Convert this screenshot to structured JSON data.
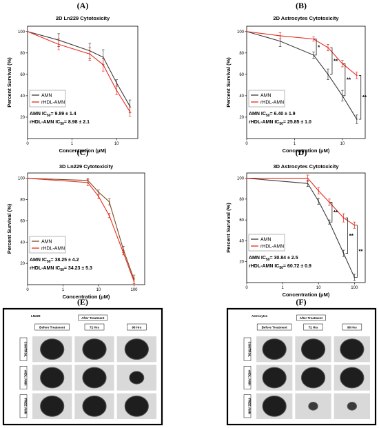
{
  "figure": {
    "panels": [
      {
        "id": "A",
        "letter": "(A)"
      },
      {
        "id": "B",
        "letter": "(B)"
      },
      {
        "id": "C",
        "letter": "(C)"
      },
      {
        "id": "D",
        "letter": "(D)"
      },
      {
        "id": "E",
        "letter": "(E)"
      },
      {
        "id": "F",
        "letter": "(F)"
      }
    ],
    "colors": {
      "amn": "#3a3a3a",
      "rhdl": "#e8281c",
      "bracket": "#000000"
    }
  },
  "chart_data": [
    {
      "id": "A",
      "type": "line",
      "title": "2D Ln229 Cytotoxicity",
      "xlabel": "Concentration (μM)",
      "ylabel": "Percent Survival (%)",
      "xscale": "log",
      "xticks": [
        {
          "v": 0.1,
          "label": "0"
        },
        {
          "v": 1,
          "label": "1"
        },
        {
          "v": 10,
          "label": "10"
        }
      ],
      "yticks": [
        20,
        40,
        60,
        80,
        100
      ],
      "ylim": [
        0,
        105
      ],
      "xlim": [
        0.1,
        30
      ],
      "legend_position": "bottom-left",
      "series": [
        {
          "name": "AMN",
          "color": "#3a3a3a",
          "x": [
            0.1,
            0.5,
            2.5,
            5,
            10,
            20
          ],
          "y": [
            100,
            92,
            82,
            76,
            52,
            30
          ],
          "err": [
            0,
            6,
            7,
            7,
            3,
            6
          ]
        },
        {
          "name": "rHDL-AMN",
          "color": "#e8281c",
          "x": [
            0.1,
            0.5,
            2.5,
            5,
            10,
            20
          ],
          "y": [
            100,
            88,
            79,
            69,
            45,
            25
          ],
          "err": [
            0,
            5,
            6,
            6,
            4,
            4
          ]
        }
      ],
      "ic50": [
        {
          "prefix": "AMN IC",
          "sub": "50",
          "value": "= 9.89 ± 1.4"
        },
        {
          "prefix": "rHDL-AMN IC",
          "sub": "50",
          "value": "= 8.98 ± 2.1"
        }
      ],
      "significance": []
    },
    {
      "id": "B",
      "type": "line",
      "title": "2D Astrocytes Cytotoxicity",
      "xlabel": "Concentration (μM)",
      "ylabel": "Percent Survival (%)",
      "xscale": "log",
      "xticks": [
        {
          "v": 0.1,
          "label": "0"
        },
        {
          "v": 1,
          "label": "1"
        },
        {
          "v": 10,
          "label": "10"
        }
      ],
      "yticks": [
        20,
        40,
        60,
        80,
        100
      ],
      "ylim": [
        0,
        105
      ],
      "xlim": [
        0.1,
        30
      ],
      "legend_position": "bottom-left",
      "series": [
        {
          "name": "AMN",
          "color": "#3a3a3a",
          "x": [
            0.1,
            0.5,
            2.5,
            5,
            10,
            20
          ],
          "y": [
            100,
            91,
            78,
            60,
            40,
            18
          ],
          "err": [
            0,
            5,
            3,
            5,
            5,
            4
          ]
        },
        {
          "name": "rHDL-AMN",
          "color": "#e8281c",
          "x": [
            0.1,
            0.5,
            2.5,
            5,
            10,
            20
          ],
          "y": [
            100,
            96,
            93,
            85,
            70,
            59
          ],
          "err": [
            0,
            3,
            2,
            3,
            3,
            3
          ]
        }
      ],
      "ic50": [
        {
          "prefix": "AMN IC",
          "sub": "50",
          "value": "= 6.40 ± 1.9"
        },
        {
          "prefix": "rHDL-AMN IC",
          "sub": "50",
          "value": "= 25.85 ± 1.0"
        }
      ],
      "significance": [
        {
          "x": 2.5,
          "label": "*"
        },
        {
          "x": 5,
          "label": "**"
        },
        {
          "x": 10,
          "label": "**"
        },
        {
          "x": 20,
          "label": "**"
        }
      ]
    },
    {
      "id": "C",
      "type": "line",
      "title": "3D Ln229 Cytotoxicity",
      "xlabel": "Concentration (μM)",
      "ylabel": "Percent Survival (%)",
      "xscale": "log",
      "xticks": [
        {
          "v": 0.1,
          "label": "0"
        },
        {
          "v": 1,
          "label": "1"
        },
        {
          "v": 10,
          "label": "10"
        },
        {
          "v": 100,
          "label": "100"
        }
      ],
      "yticks": [
        20,
        40,
        60,
        80,
        100
      ],
      "ylim": [
        0,
        105
      ],
      "xlim": [
        0.1,
        200
      ],
      "legend_position": "bottom-left",
      "series": [
        {
          "name": "AMN",
          "color": "#7a4a22",
          "x": [
            0.1,
            5,
            10,
            20,
            50,
            100
          ],
          "y": [
            100,
            98,
            87,
            78,
            33,
            5
          ],
          "err": [
            0,
            2,
            2,
            3,
            3,
            4
          ]
        },
        {
          "name": "rHDL-AMN",
          "color": "#e8281c",
          "x": [
            0.1,
            5,
            10,
            20,
            50,
            100
          ],
          "y": [
            100,
            96,
            83,
            65,
            30,
            3
          ],
          "err": [
            0,
            3,
            2,
            2,
            2,
            3
          ]
        }
      ],
      "ic50": [
        {
          "prefix": "AMN IC",
          "sub": "50",
          "value": "= 38.25 ± 4.2"
        },
        {
          "prefix": "rHDL-AMN IC",
          "sub": "50",
          "value": "= 34.23 ± 5.3"
        }
      ],
      "significance": []
    },
    {
      "id": "D",
      "type": "line",
      "title": "3D Astrocytes Cytotoxicity",
      "xlabel": "Concentration (μM)",
      "ylabel": "Percent Survival (%)",
      "xscale": "log",
      "xticks": [
        {
          "v": 0.1,
          "label": "0"
        },
        {
          "v": 1,
          "label": "1"
        },
        {
          "v": 10,
          "label": "10"
        },
        {
          "v": 100,
          "label": "100"
        }
      ],
      "yticks": [
        20,
        40,
        60,
        80,
        100
      ],
      "ylim": [
        0,
        105
      ],
      "xlim": [
        0.1,
        200
      ],
      "legend_position": "bottom-left",
      "series": [
        {
          "name": "AMN",
          "color": "#3a3a3a",
          "x": [
            0.1,
            5,
            10,
            20,
            50,
            100
          ],
          "y": [
            100,
            95,
            78,
            58,
            28,
            5
          ],
          "err": [
            0,
            3,
            3,
            2,
            3,
            3
          ]
        },
        {
          "name": "rHDL-AMN",
          "color": "#e8281c",
          "x": [
            0.1,
            5,
            10,
            20,
            50,
            100
          ],
          "y": [
            100,
            100,
            88,
            77,
            62,
            55
          ],
          "err": [
            0,
            3,
            3,
            3,
            4,
            3
          ]
        }
      ],
      "ic50": [
        {
          "prefix": "AMN IC",
          "sub": "50",
          "value": "= 30.84 ± 2.5"
        },
        {
          "prefix": "rHDL-AMN IC",
          "sub": "50",
          "value": "= 60.72 ± 0.9"
        }
      ],
      "significance": [
        {
          "x": 20,
          "label": "**"
        },
        {
          "x": 50,
          "label": "**"
        },
        {
          "x": 100,
          "label": "**"
        }
      ]
    }
  ],
  "image_panels": [
    {
      "id": "E",
      "title": "LN229",
      "header": "After Treatment",
      "columns": [
        "Before Treatment",
        "72 Hrs",
        "96 Hrs"
      ],
      "rows": [
        "CONTROL",
        "rHDL-AMN",
        "FREE AMN"
      ]
    },
    {
      "id": "F",
      "title": "Astrocytes",
      "header": "After Treatment",
      "columns": [
        "Before Treatment",
        "72 Hrs",
        "96 Hrs"
      ],
      "rows": [
        "CONTROL",
        "rHDL-AMN",
        "FREE AMN"
      ]
    }
  ]
}
